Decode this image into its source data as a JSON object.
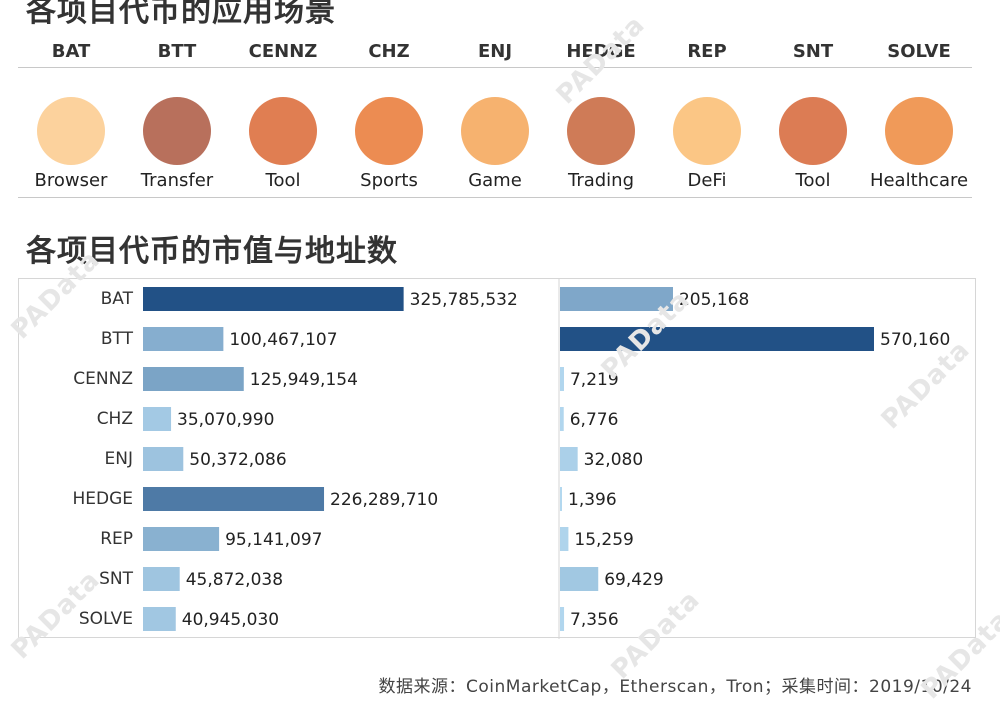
{
  "titles": {
    "top": "各项目代币的应用场景",
    "middle": "各项目代币的市值与地址数"
  },
  "tokens": [
    {
      "name": "BAT",
      "use": "Browser",
      "color": "#fcd29d"
    },
    {
      "name": "BTT",
      "use": "Transfer",
      "color": "#b8705c"
    },
    {
      "name": "CENNZ",
      "use": "Tool",
      "color": "#e07e52"
    },
    {
      "name": "CHZ",
      "use": "Sports",
      "color": "#ec8c52"
    },
    {
      "name": "ENJ",
      "use": "Game",
      "color": "#f6b26f"
    },
    {
      "name": "HEDGE",
      "use": "Trading",
      "color": "#cf7b57"
    },
    {
      "name": "REP",
      "use": "DeFi",
      "color": "#fbc685"
    },
    {
      "name": "SNT",
      "use": "Tool",
      "color": "#dc7c54"
    },
    {
      "name": "SOLVE",
      "use": "Healthcare",
      "color": "#f09a59"
    }
  ],
  "chart_data": [
    {
      "type": "bar",
      "orientation": "horizontal",
      "categories": [
        "BAT",
        "BTT",
        "CENNZ",
        "CHZ",
        "ENJ",
        "HEDGE",
        "REP",
        "SNT",
        "SOLVE"
      ],
      "values": [
        325785532,
        100467107,
        125949154,
        35070990,
        50372086,
        226289710,
        95141097,
        45872038,
        40945030
      ],
      "labels": [
        "325,785,532",
        "100,467,107",
        "125,949,154",
        "35,070,990",
        "50,372,086",
        "226,289,710",
        "95,141,097",
        "45,872,038",
        "40,945,030"
      ],
      "xlim": [
        0,
        650000000
      ],
      "grid": false,
      "color_scale": [
        "#b3d8ef",
        "#225186"
      ]
    },
    {
      "type": "bar",
      "orientation": "horizontal",
      "categories": [
        "BAT",
        "BTT",
        "CENNZ",
        "CHZ",
        "ENJ",
        "HEDGE",
        "REP",
        "SNT",
        "SOLVE"
      ],
      "values": [
        205168,
        570160,
        7219,
        6776,
        32080,
        1396,
        15259,
        69429,
        7356
      ],
      "labels": [
        "205,168",
        "570,160",
        "7,219",
        "6,776",
        "32,080",
        "1,396",
        "15,259",
        "69,429",
        "7,356"
      ],
      "xlim": [
        0,
        570160
      ],
      "grid": false,
      "color_scale": [
        "#b3d8ef",
        "#225186"
      ]
    }
  ],
  "footer": "数据来源：CoinMarketCap，Etherscan，Tron；采集时间：2019/10/24",
  "watermark": "PAData"
}
